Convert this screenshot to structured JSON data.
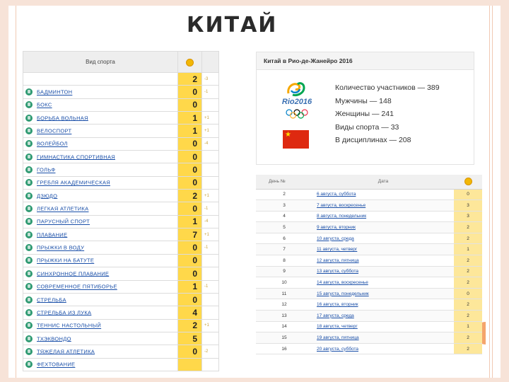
{
  "slide": {
    "title": "КИТАЙ"
  },
  "sports_table": {
    "header": {
      "sport": "Вид спорта",
      "medal_icon": "gold-medal-icon"
    },
    "rows": [
      {
        "sport": "",
        "gold": "2",
        "change": "-3"
      },
      {
        "sport": "БАДМИНТОН",
        "gold": "0",
        "change": "-1"
      },
      {
        "sport": "БОКС",
        "gold": "0",
        "change": ""
      },
      {
        "sport": "БОРЬБА ВОЛЬНАЯ",
        "gold": "1",
        "change": "+1"
      },
      {
        "sport": "ВЕЛОСПОРТ",
        "gold": "1",
        "change": "+1"
      },
      {
        "sport": "ВОЛЕЙБОЛ",
        "gold": "0",
        "change": "-4"
      },
      {
        "sport": "ГИМНАСТИКА СПОРТИВНАЯ",
        "gold": "0",
        "change": ""
      },
      {
        "sport": "ГОЛЬФ",
        "gold": "0",
        "change": ""
      },
      {
        "sport": "ГРЕБЛЯ АКАДЕМИЧЕСКАЯ",
        "gold": "0",
        "change": ""
      },
      {
        "sport": "ДЗЮДО",
        "gold": "2",
        "change": "+1"
      },
      {
        "sport": "ЛЕГКАЯ АТЛЕТИКА",
        "gold": "0",
        "change": "-1"
      },
      {
        "sport": "ПАРУСНЫЙ СПОРТ",
        "gold": "1",
        "change": "-4"
      },
      {
        "sport": "ПЛАВАНИЕ",
        "gold": "7",
        "change": "+1"
      },
      {
        "sport": "ПРЫЖКИ В ВОДУ",
        "gold": "0",
        "change": "-1"
      },
      {
        "sport": "ПРЫЖКИ НА БАТУТЕ",
        "gold": "0",
        "change": ""
      },
      {
        "sport": "СИНХРОННОЕ ПЛАВАНИЕ",
        "gold": "0",
        "change": ""
      },
      {
        "sport": "СОВРЕМЕННОЕ ПЯТИБОРЬЕ",
        "gold": "1",
        "change": "-1"
      },
      {
        "sport": "СТРЕЛЬБА",
        "gold": "0",
        "change": ""
      },
      {
        "sport": "СТРЕЛЬБА ИЗ ЛУКА",
        "gold": "4",
        "change": ""
      },
      {
        "sport": "ТЕННИС НАСТОЛЬНЫЙ",
        "gold": "2",
        "change": "+1"
      },
      {
        "sport": "ТХЭКВОНДО",
        "gold": "5",
        "change": ""
      },
      {
        "sport": "ТЯЖЕЛАЯ АТЛЕТИКА",
        "gold": "0",
        "change": "-2"
      },
      {
        "sport": "ФЕХТОВАНИЕ",
        "gold": "",
        "change": ""
      }
    ]
  },
  "info_box": {
    "title": "Китай в Рио-де-Жанейро 2016",
    "logo_text": "Rio2016",
    "lines": [
      "Количество участников — 389",
      "Мужчины — 148",
      "Женщины — 241",
      "Виды спорта — 33",
      "В дисциплинах — 208"
    ],
    "colors": {
      "flag_red": "#de2910",
      "flag_star": "#ffde00"
    }
  },
  "days_table": {
    "header": {
      "day": "День №",
      "date": "Дата",
      "medal_icon": "gold-medal-icon"
    },
    "rows": [
      {
        "day": "2",
        "date": "6 августа, суббота",
        "gold": "0"
      },
      {
        "day": "3",
        "date": "7 августа, воскресенье",
        "gold": "3"
      },
      {
        "day": "4",
        "date": "8 августа, понедельник",
        "gold": "3"
      },
      {
        "day": "5",
        "date": "9 августа, вторник",
        "gold": "2"
      },
      {
        "day": "6",
        "date": "10 августа, среда",
        "gold": "2"
      },
      {
        "day": "7",
        "date": "11 августа, четверг",
        "gold": "1"
      },
      {
        "day": "8",
        "date": "12 августа, пятница",
        "gold": "2"
      },
      {
        "day": "9",
        "date": "13 августа, суббота",
        "gold": "2"
      },
      {
        "day": "10",
        "date": "14 августа, воскресенье",
        "gold": "2"
      },
      {
        "day": "11",
        "date": "15 августа, понедельник",
        "gold": "0"
      },
      {
        "day": "12",
        "date": "16 августа, вторник",
        "gold": "2"
      },
      {
        "day": "13",
        "date": "17 августа, среда",
        "gold": "2"
      },
      {
        "day": "14",
        "date": "18 августа, четверг",
        "gold": "1"
      },
      {
        "day": "15",
        "date": "19 августа, пятница",
        "gold": "2"
      },
      {
        "day": "16",
        "date": "20 августа, суббота",
        "gold": "2"
      }
    ]
  }
}
